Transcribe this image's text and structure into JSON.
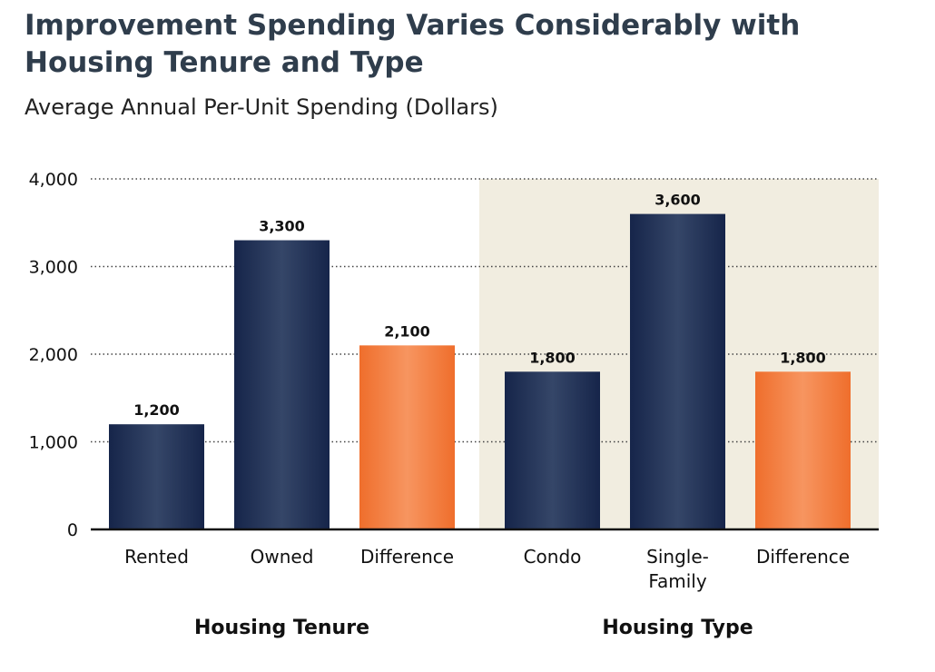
{
  "chart_data": {
    "type": "bar",
    "title": "Improvement Spending Varies Considerably with Housing Tenure and Type",
    "subtitle": "Average Annual Per-Unit Spending (Dollars)",
    "ylim": [
      0,
      4000
    ],
    "y_ticks": [
      {
        "value": 0,
        "label": "0"
      },
      {
        "value": 1000,
        "label": "1,000"
      },
      {
        "value": 2000,
        "label": "2,000"
      },
      {
        "value": 3000,
        "label": "3,000"
      },
      {
        "value": 4000,
        "label": "4,000"
      }
    ],
    "grid": true,
    "groups": [
      {
        "label": "Housing Tenure",
        "highlighted": false,
        "bars": [
          {
            "category": [
              "Rented"
            ],
            "value": 1200,
            "label": "1,200",
            "kind": "base"
          },
          {
            "category": [
              "Owned"
            ],
            "value": 3300,
            "label": "3,300",
            "kind": "base"
          },
          {
            "category": [
              "Difference"
            ],
            "value": 2100,
            "label": "2,100",
            "kind": "difference"
          }
        ]
      },
      {
        "label": "Housing Type",
        "highlighted": true,
        "bars": [
          {
            "category": [
              "Condo"
            ],
            "value": 1800,
            "label": "1,800",
            "kind": "base"
          },
          {
            "category": [
              "Single-",
              "Family"
            ],
            "value": 3600,
            "label": "3,600",
            "kind": "base"
          },
          {
            "category": [
              "Difference"
            ],
            "value": 1800,
            "label": "1,800",
            "kind": "difference"
          }
        ]
      }
    ],
    "colors": {
      "base": "#1e2f52",
      "difference": "#f07a3a",
      "highlight_panel": "#f1ede0",
      "grid": "#444444",
      "axis": "#111111"
    }
  }
}
